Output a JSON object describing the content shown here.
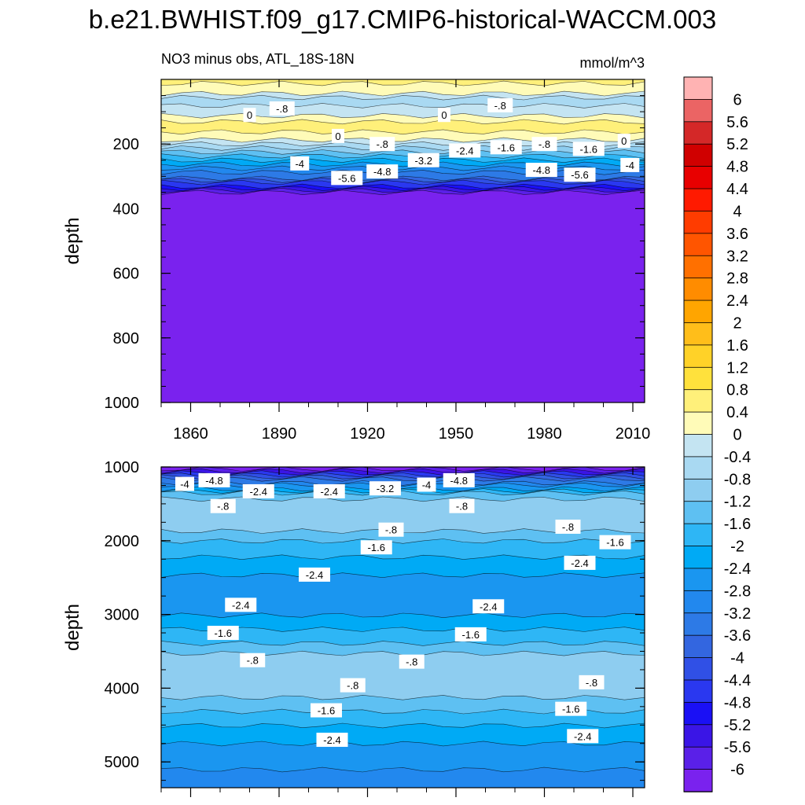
{
  "title": "b.e21.BWHIST.f09_g17.CMIP6-historical-WACCM.003",
  "colorbar": {
    "labels": [
      "6",
      "5.6",
      "5.2",
      "4.8",
      "4.4",
      "4",
      "3.6",
      "3.2",
      "2.8",
      "2.4",
      "2",
      "1.6",
      "1.2",
      "0.8",
      "0.4",
      "0",
      "-0.4",
      "-0.8",
      "-1.2",
      "-1.6",
      "-2",
      "-2.4",
      "-2.8",
      "-3.2",
      "-3.6",
      "-4",
      "-4.4",
      "-4.8",
      "-5.2",
      "-5.6",
      "-6"
    ],
    "colors": [
      "#FFB3B3",
      "#EB6464",
      "#D42828",
      "#D00000",
      "#E80000",
      "#FF1A00",
      "#FF3C00",
      "#FF5500",
      "#FF7000",
      "#FF8C00",
      "#FFA500",
      "#FFBE1A",
      "#FFD228",
      "#FFE13C",
      "#FFF07A",
      "#FFFBB8",
      "#C4E4F2",
      "#A9D9F2",
      "#8ECDF0",
      "#5EC0F2",
      "#2EB6F5",
      "#00AAF5",
      "#1A96F0",
      "#2288EE",
      "#2D7AE6",
      "#3366E0",
      "#3050E6",
      "#2A38F0",
      "#1A10F5",
      "#3A15E6",
      "#5A20E8",
      "#7A22EE"
    ]
  },
  "chart_data": [
    {
      "type": "contour",
      "panel": "upper",
      "title": "NO3 minus obs, ATL_18S-18N",
      "units": "mmol/m^3",
      "xlabel": "",
      "ylabel": "depth",
      "xlim": [
        1850,
        2014
      ],
      "ylim": [
        1000,
        0
      ],
      "x_ticks": [
        "1860",
        "1890",
        "1920",
        "1950",
        "1980",
        "2010"
      ],
      "y_ticks": [
        "200",
        "400",
        "600",
        "800",
        "1000"
      ],
      "layers": [
        {
          "depth": 0,
          "value": 0.5
        },
        {
          "depth": 30,
          "value": 0.2
        },
        {
          "depth": 60,
          "value": -0.6
        },
        {
          "depth": 100,
          "value": -0.2
        },
        {
          "depth": 140,
          "value": 0.6
        },
        {
          "depth": 180,
          "value": 0.2
        },
        {
          "depth": 210,
          "value": -0.8
        },
        {
          "depth": 260,
          "value": -2.4
        },
        {
          "depth": 300,
          "value": -3.6
        },
        {
          "depth": 330,
          "value": -5.0
        },
        {
          "depth": 350,
          "value": -6.2
        },
        {
          "depth": 1000,
          "value": -6.2
        }
      ],
      "contour_labels": [
        {
          "text": "-.8",
          "x": 1891,
          "depth": 90
        },
        {
          "text": "0",
          "x": 1880,
          "depth": 110
        },
        {
          "text": "0",
          "x": 1946,
          "depth": 110
        },
        {
          "text": "-.8",
          "x": 1965,
          "depth": 80
        },
        {
          "text": "0",
          "x": 1910,
          "depth": 175
        },
        {
          "text": "-.8",
          "x": 1925,
          "depth": 200
        },
        {
          "text": "-.8",
          "x": 1980,
          "depth": 200
        },
        {
          "text": "0",
          "x": 2007,
          "depth": 190
        },
        {
          "text": "-1.6",
          "x": 1967,
          "depth": 210
        },
        {
          "text": "-1.6",
          "x": 1995,
          "depth": 215
        },
        {
          "text": "-2.4",
          "x": 1953,
          "depth": 220
        },
        {
          "text": "-3.2",
          "x": 1939,
          "depth": 250
        },
        {
          "text": "-4",
          "x": 1897,
          "depth": 260
        },
        {
          "text": "-4",
          "x": 2009,
          "depth": 265
        },
        {
          "text": "-4.8",
          "x": 1925,
          "depth": 285
        },
        {
          "text": "-4.8",
          "x": 1979,
          "depth": 280
        },
        {
          "text": "-5.6",
          "x": 1913,
          "depth": 305
        },
        {
          "text": "-5.6",
          "x": 1992,
          "depth": 295
        }
      ]
    },
    {
      "type": "contour",
      "panel": "lower",
      "title": "",
      "units": "",
      "xlabel": "",
      "ylabel": "depth",
      "xlim": [
        1850,
        2014
      ],
      "ylim": [
        5350,
        1000
      ],
      "y_ticks": [
        "1000",
        "2000",
        "3000",
        "4000",
        "5000"
      ],
      "layers": [
        {
          "depth": 1000,
          "value": -6.2
        },
        {
          "depth": 1120,
          "value": -4.0
        },
        {
          "depth": 1350,
          "value": -1.6
        },
        {
          "depth": 1500,
          "value": -0.8
        },
        {
          "depth": 1800,
          "value": -1.0
        },
        {
          "depth": 2000,
          "value": -1.6
        },
        {
          "depth": 2300,
          "value": -2.2
        },
        {
          "depth": 2600,
          "value": -2.6
        },
        {
          "depth": 3000,
          "value": -2.4
        },
        {
          "depth": 3300,
          "value": -1.8
        },
        {
          "depth": 3600,
          "value": -1.0
        },
        {
          "depth": 3900,
          "value": -0.8
        },
        {
          "depth": 4200,
          "value": -1.4
        },
        {
          "depth": 4500,
          "value": -2.0
        },
        {
          "depth": 4800,
          "value": -2.5
        },
        {
          "depth": 5100,
          "value": -2.8
        },
        {
          "depth": 5350,
          "value": -3.0
        }
      ],
      "contour_labels": [
        {
          "text": "-4",
          "x": 1858,
          "depth": 1230
        },
        {
          "text": "-4.8",
          "x": 1868,
          "depth": 1180
        },
        {
          "text": "-2.4",
          "x": 1883,
          "depth": 1330
        },
        {
          "text": "-.8",
          "x": 1871,
          "depth": 1530
        },
        {
          "text": "-2.4",
          "x": 1907,
          "depth": 1330
        },
        {
          "text": "-3.2",
          "x": 1926,
          "depth": 1290
        },
        {
          "text": "-4",
          "x": 1940,
          "depth": 1240
        },
        {
          "text": "-4.8",
          "x": 1951,
          "depth": 1180
        },
        {
          "text": "-.8",
          "x": 1952,
          "depth": 1530
        },
        {
          "text": "-.8",
          "x": 1928,
          "depth": 1850
        },
        {
          "text": "-.8",
          "x": 1988,
          "depth": 1810
        },
        {
          "text": "-1.6",
          "x": 1923,
          "depth": 2090
        },
        {
          "text": "-1.6",
          "x": 2004,
          "depth": 2020
        },
        {
          "text": "-2.4",
          "x": 1902,
          "depth": 2460
        },
        {
          "text": "-2.4",
          "x": 1992,
          "depth": 2300
        },
        {
          "text": "-2.4",
          "x": 1877,
          "depth": 2870
        },
        {
          "text": "-2.4",
          "x": 1961,
          "depth": 2890
        },
        {
          "text": "-1.6",
          "x": 1871,
          "depth": 3250
        },
        {
          "text": "-1.6",
          "x": 1955,
          "depth": 3270
        },
        {
          "text": "-.8",
          "x": 1881,
          "depth": 3620
        },
        {
          "text": "-.8",
          "x": 1935,
          "depth": 3640
        },
        {
          "text": "-.8",
          "x": 1996,
          "depth": 3920
        },
        {
          "text": "-.8",
          "x": 1915,
          "depth": 3960
        },
        {
          "text": "-1.6",
          "x": 1906,
          "depth": 4300
        },
        {
          "text": "-1.6",
          "x": 1989,
          "depth": 4280
        },
        {
          "text": "-2.4",
          "x": 1908,
          "depth": 4700
        },
        {
          "text": "-2.4",
          "x": 1993,
          "depth": 4650
        }
      ]
    }
  ]
}
